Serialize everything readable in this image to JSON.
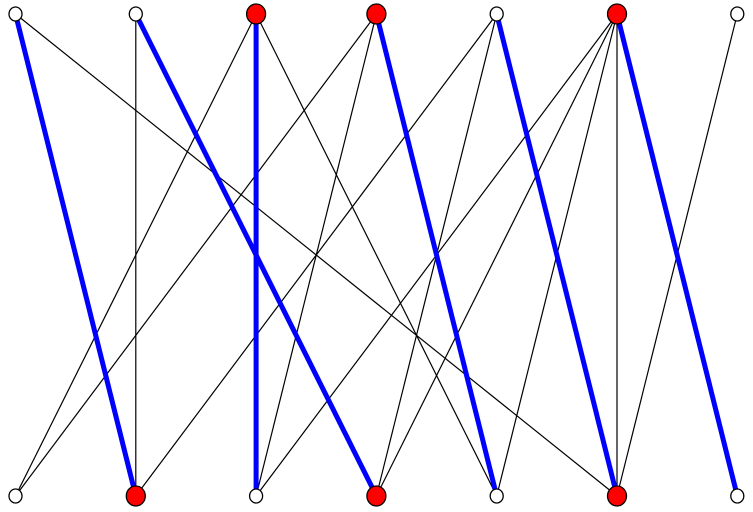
{
  "graph": {
    "type": "bipartite",
    "colors": {
      "matching_edge": "#0000ff",
      "normal_edge": "#000000",
      "highlighted_node": "#ff0000",
      "normal_node": "#ffffff",
      "node_stroke": "#000000"
    },
    "top_nodes": [
      {
        "id": "t0",
        "highlighted": false
      },
      {
        "id": "t1",
        "highlighted": false
      },
      {
        "id": "t2",
        "highlighted": true
      },
      {
        "id": "t3",
        "highlighted": true
      },
      {
        "id": "t4",
        "highlighted": false
      },
      {
        "id": "t5",
        "highlighted": true
      },
      {
        "id": "t6",
        "highlighted": false
      }
    ],
    "bottom_nodes": [
      {
        "id": "b0",
        "highlighted": false
      },
      {
        "id": "b1",
        "highlighted": true
      },
      {
        "id": "b2",
        "highlighted": false
      },
      {
        "id": "b3",
        "highlighted": true
      },
      {
        "id": "b4",
        "highlighted": false
      },
      {
        "id": "b5",
        "highlighted": true
      },
      {
        "id": "b6",
        "highlighted": false
      }
    ],
    "edges": [
      {
        "from": "t0",
        "to": "b1",
        "matching": true
      },
      {
        "from": "t1",
        "to": "b3",
        "matching": true
      },
      {
        "from": "t2",
        "to": "b2",
        "matching": true
      },
      {
        "from": "t3",
        "to": "b4",
        "matching": true
      },
      {
        "from": "t4",
        "to": "b5",
        "matching": true
      },
      {
        "from": "t5",
        "to": "b6",
        "matching": true
      },
      {
        "from": "t0",
        "to": "b5",
        "matching": false
      },
      {
        "from": "t1",
        "to": "b1",
        "matching": false
      },
      {
        "from": "t2",
        "to": "b0",
        "matching": false
      },
      {
        "from": "t2",
        "to": "b4",
        "matching": false
      },
      {
        "from": "t3",
        "to": "b0",
        "matching": false
      },
      {
        "from": "t3",
        "to": "b2",
        "matching": false
      },
      {
        "from": "t4",
        "to": "b1",
        "matching": false
      },
      {
        "from": "t4",
        "to": "b3",
        "matching": false
      },
      {
        "from": "t5",
        "to": "b2",
        "matching": false
      },
      {
        "from": "t5",
        "to": "b3",
        "matching": false
      },
      {
        "from": "t5",
        "to": "b4",
        "matching": false
      },
      {
        "from": "t5",
        "to": "b5",
        "matching": false
      },
      {
        "from": "t6",
        "to": "b5",
        "matching": false
      }
    ]
  }
}
